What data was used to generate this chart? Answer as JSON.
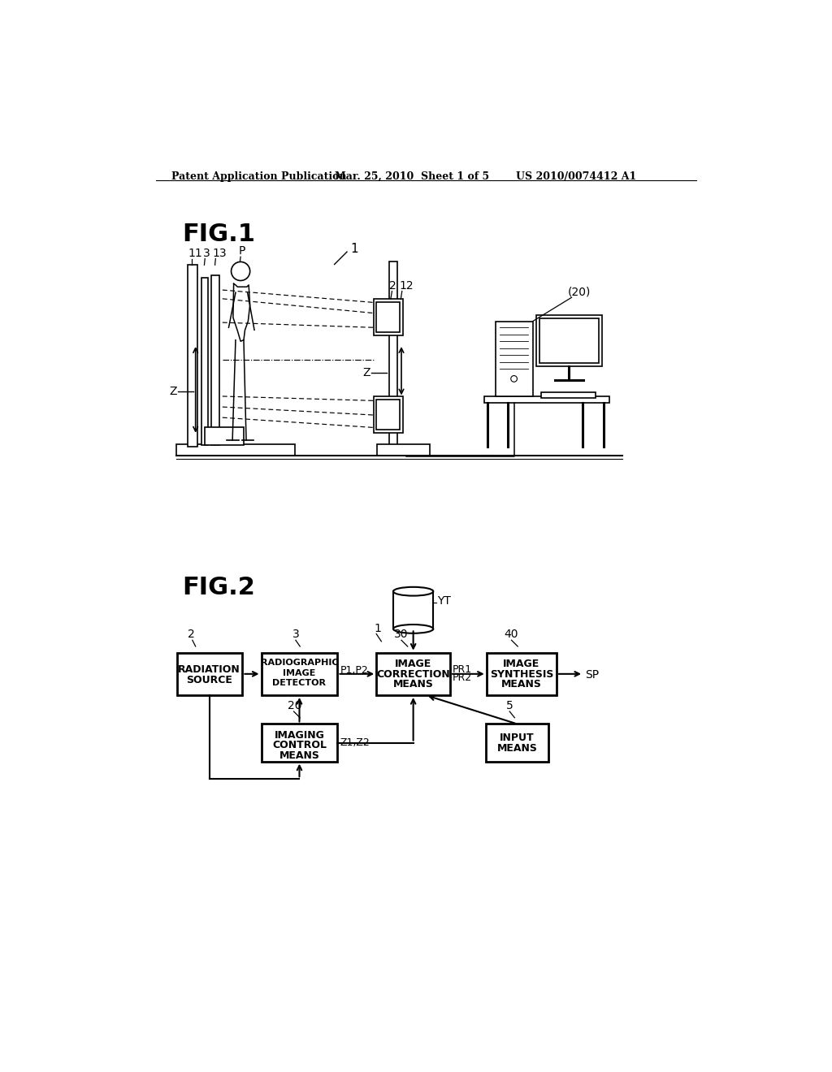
{
  "bg_color": "#ffffff",
  "header_left": "Patent Application Publication",
  "header_mid": "Mar. 25, 2010  Sheet 1 of 5",
  "header_right": "US 2010/0074412 A1",
  "fig1_label": "FIG.1",
  "fig2_label": "FIG.2"
}
